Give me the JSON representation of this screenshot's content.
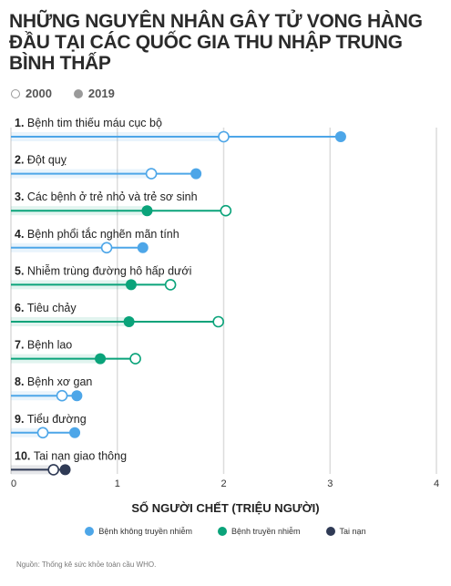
{
  "title": "NHỮNG NGUYÊN NHÂN GÂY TỬ VONG HÀNG ĐẦU TẠI CÁC QUỐC GIA THU NHẬP TRUNG BÌNH THẤP",
  "year_legend": [
    {
      "label": "2000",
      "style": "open"
    },
    {
      "label": "2019",
      "style": "filled"
    }
  ],
  "type_legend": [
    {
      "label": "Bệnh không truyền nhiễm",
      "color": "#4da6e8"
    },
    {
      "label": "Bệnh truyền nhiễm",
      "color": "#0aa37a"
    },
    {
      "label": "Tai nạn",
      "color": "#2f3a55"
    }
  ],
  "source": "Nguồn: Thống kê sức khỏe toàn cầu WHO.",
  "chart_data": {
    "type": "dumbbell",
    "xlabel": "SỐ NGƯỜI CHẾT (TRIỆU NGƯỜI)",
    "xlim": [
      0,
      4
    ],
    "x_ticks": [
      "0",
      "1",
      "2",
      "3",
      "4"
    ],
    "series_years": [
      "2000",
      "2019"
    ],
    "categories": [
      {
        "rank": "1.",
        "label": "Bệnh tim thiếu máu cục bộ",
        "v2000": 2.0,
        "v2019": 3.1,
        "group": 0
      },
      {
        "rank": "2.",
        "label": "Đột quỵ",
        "v2000": 1.32,
        "v2019": 1.74,
        "group": 0
      },
      {
        "rank": "3.",
        "label": "Các bệnh ở trẻ nhỏ và trẻ sơ sinh",
        "v2000": 2.02,
        "v2019": 1.28,
        "group": 1
      },
      {
        "rank": "4.",
        "label": "Bệnh phổi tắc nghẽn mãn tính",
        "v2000": 0.9,
        "v2019": 1.24,
        "group": 0
      },
      {
        "rank": "5.",
        "label": "Nhiễm trùng đường hô hấp dưới",
        "v2000": 1.5,
        "v2019": 1.13,
        "group": 1
      },
      {
        "rank": "6.",
        "label": "Tiêu chảy",
        "v2000": 1.95,
        "v2019": 1.11,
        "group": 1
      },
      {
        "rank": "7.",
        "label": "Bệnh lao",
        "v2000": 1.17,
        "v2019": 0.84,
        "group": 1
      },
      {
        "rank": "8.",
        "label": "Bệnh xơ gan",
        "v2000": 0.48,
        "v2019": 0.62,
        "group": 0
      },
      {
        "rank": "9.",
        "label": "Tiểu đường",
        "v2000": 0.3,
        "v2019": 0.6,
        "group": 0
      },
      {
        "rank": "10.",
        "label": "Tai nạn giao thông",
        "v2000": 0.4,
        "v2019": 0.51,
        "group": 2
      }
    ]
  }
}
